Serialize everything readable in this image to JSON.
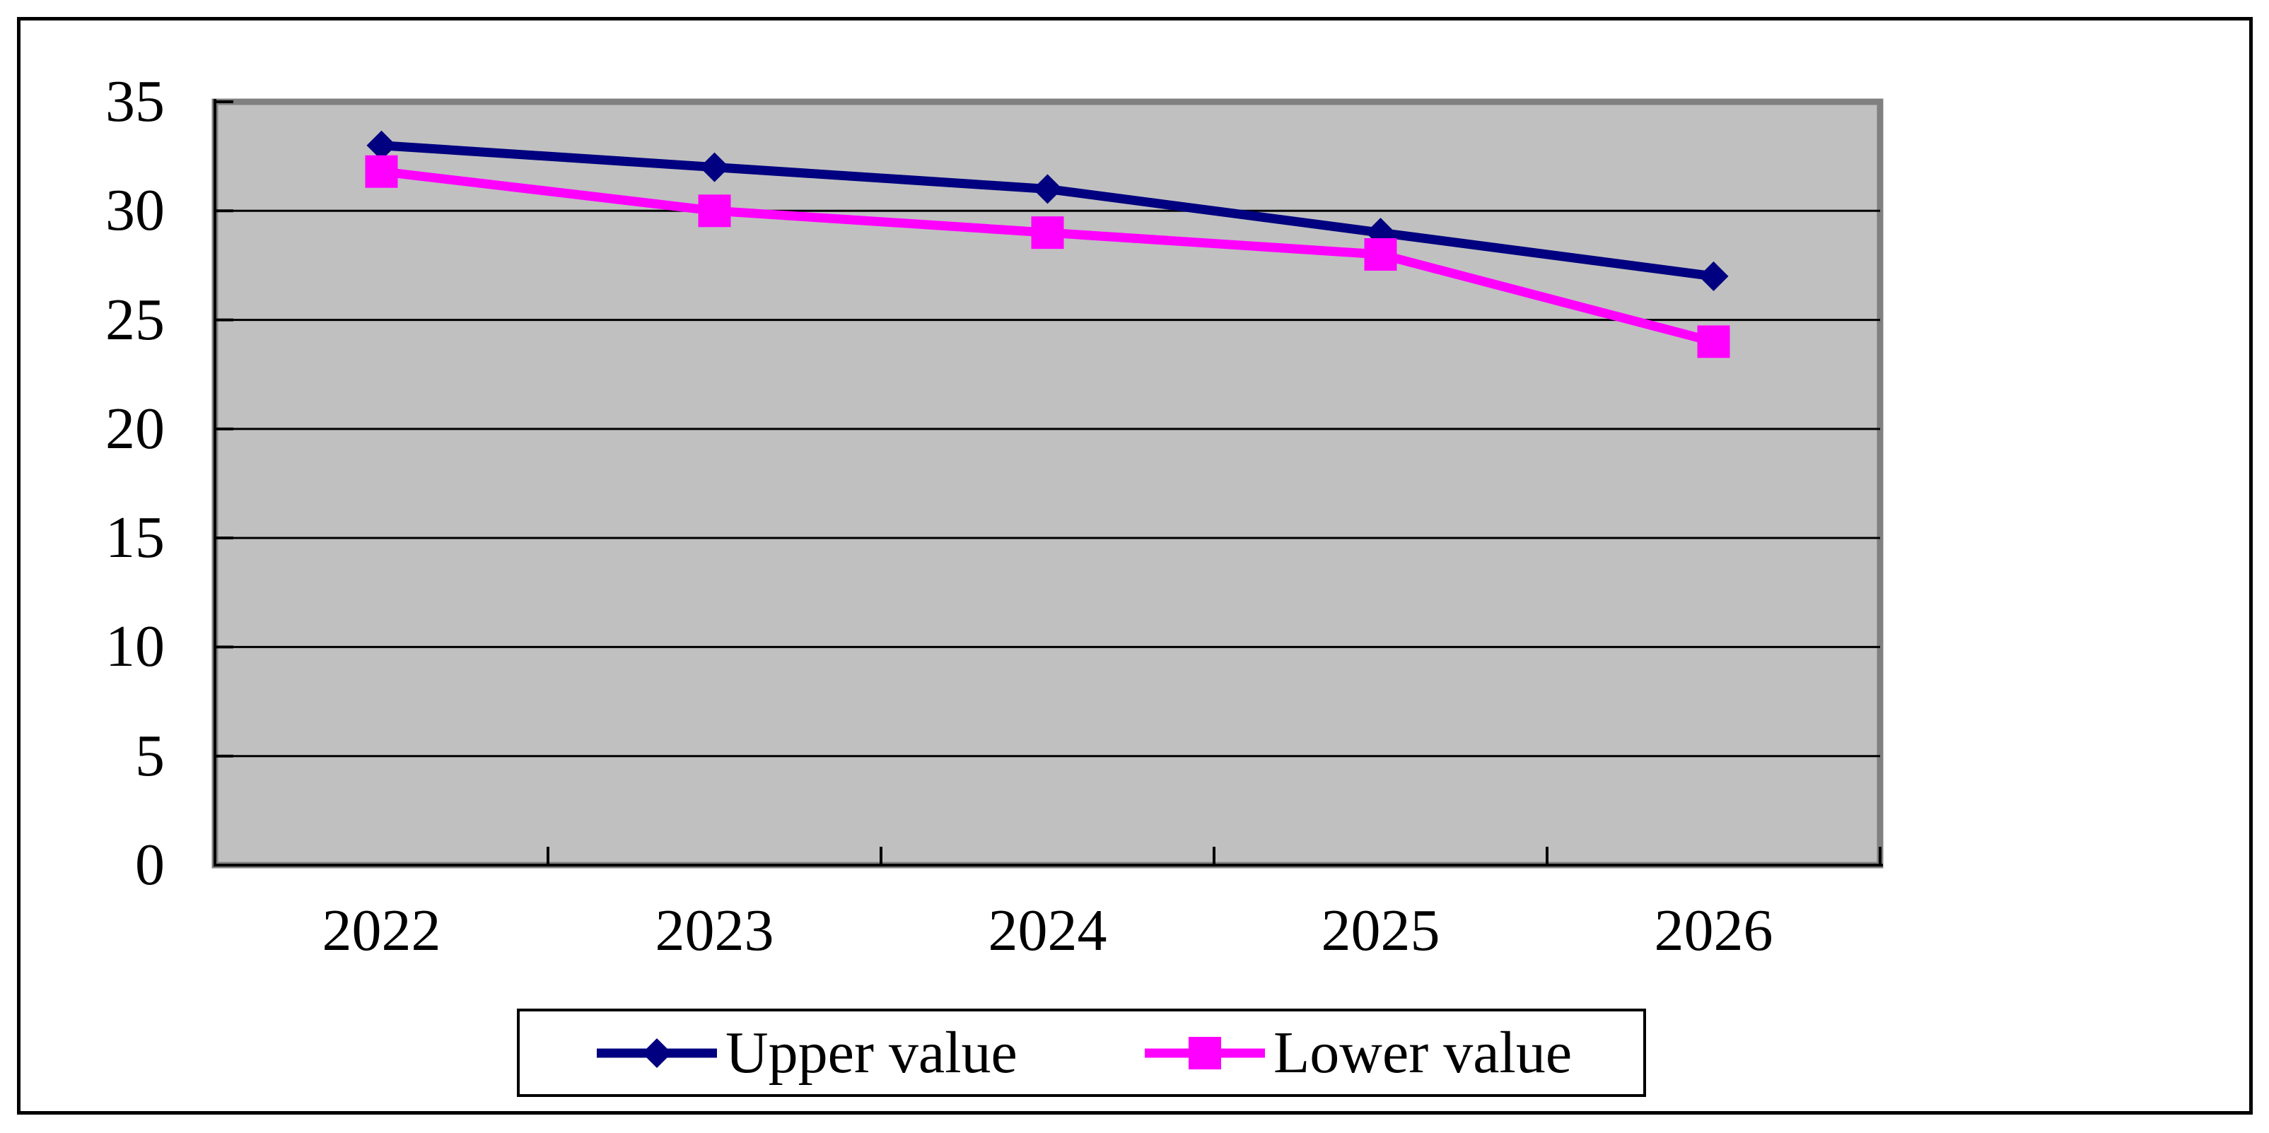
{
  "chart_data": {
    "type": "line",
    "title": "",
    "categories": [
      "2022",
      "2023",
      "2024",
      "2025",
      "2026"
    ],
    "series": [
      {
        "name": "Upper value",
        "color": "#000080",
        "marker": "diamond",
        "values": [
          33,
          32,
          31,
          29,
          27
        ]
      },
      {
        "name": "Lower value",
        "color": "#FF00FF",
        "marker": "square",
        "values": [
          31.8,
          30,
          29,
          28,
          24
        ]
      }
    ],
    "xlabel": "",
    "ylabel": "",
    "ylim": [
      0,
      35
    ],
    "ytick_interval": 5,
    "yticks": [
      0,
      5,
      10,
      15,
      20,
      25,
      30,
      35
    ],
    "grid": "horizontal",
    "gridline_color": "#000000",
    "axis_color": "#000000",
    "plot_bg_color": "#C0C0C0",
    "plot_border_color": "#808080",
    "page_bg_color": "#FFFFFF",
    "legend_position": "bottom",
    "legend_border_color": "#000000"
  }
}
